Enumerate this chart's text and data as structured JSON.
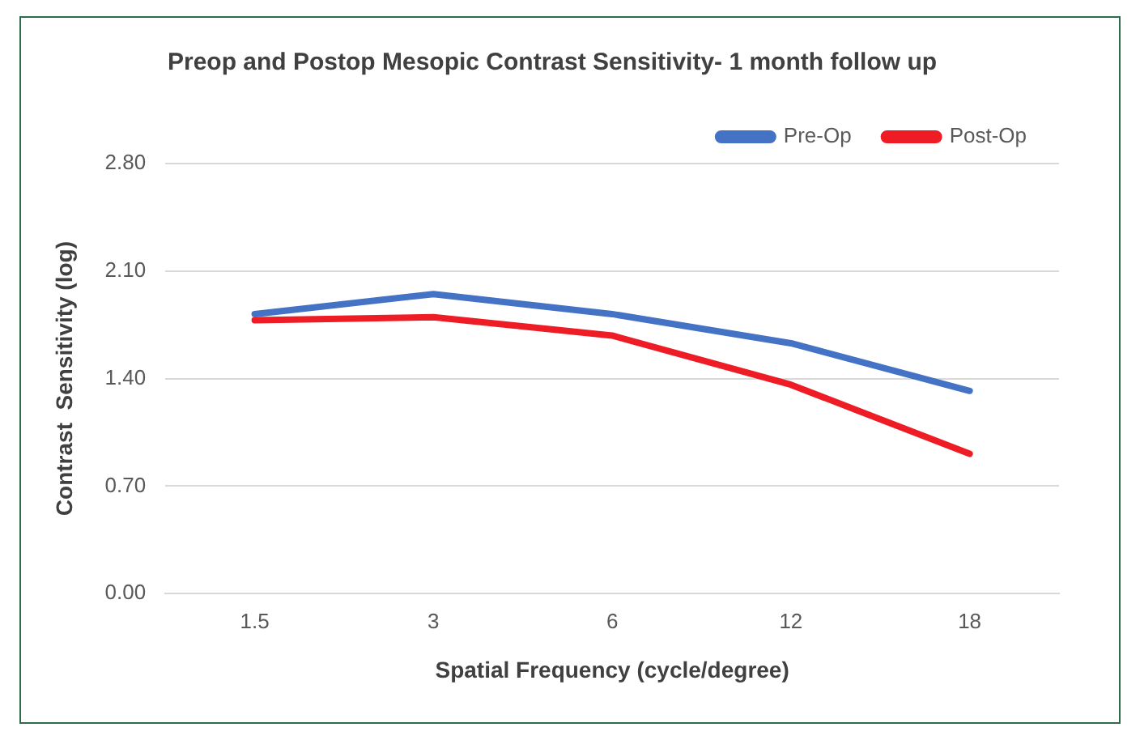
{
  "chart_data": {
    "type": "line",
    "title": "Preop and Postop Mesopic Contrast Sensitivity- 1 month follow up",
    "xlabel": "Spatial Frequency (cycle/degree)",
    "ylabel": "Contrast  Sensitivity (log)",
    "categories": [
      "1.5",
      "3",
      "6",
      "12",
      "18"
    ],
    "series": [
      {
        "name": "Pre-Op",
        "color": "#4472c4",
        "values": [
          1.82,
          1.95,
          1.82,
          1.63,
          1.32
        ]
      },
      {
        "name": "Post-Op",
        "color": "#ee1c25",
        "values": [
          1.78,
          1.8,
          1.68,
          1.36,
          0.91
        ]
      }
    ],
    "ylim": [
      0,
      2.8
    ],
    "yticks": [
      {
        "value": 0,
        "label": "0.00"
      },
      {
        "value": 0.7,
        "label": "0.70"
      },
      {
        "value": 1.4,
        "label": "1.40"
      },
      {
        "value": 2.1,
        "label": "2.10"
      },
      {
        "value": 2.8,
        "label": "2.80"
      }
    ],
    "grid": "y",
    "legend": "top right",
    "marker": "none",
    "line_style": "solid"
  }
}
